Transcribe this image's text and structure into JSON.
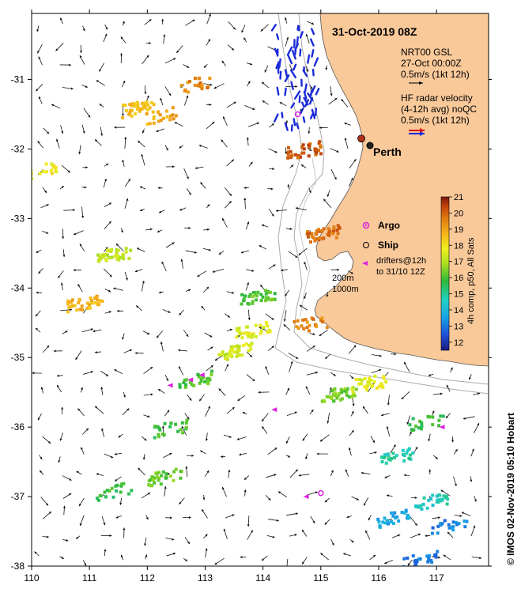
{
  "title": "31-Oct-2019 08Z",
  "legend": {
    "gsl_line1": "NRT00 GSL",
    "gsl_line2": "27-Oct 00:00Z",
    "gsl_scale": "0.5m/s (1kt 12h)",
    "hf_line1": "HF radar velocity",
    "hf_line2": "(4-12h avg) noQC",
    "hf_scale": "0.5m/s (1kt 12h)"
  },
  "places": {
    "perth": "Perth",
    "argo": "Argo",
    "ship": "Ship",
    "drifters_line1": "drifters@12h",
    "drifters_line2": "to 31/10 12Z",
    "iso200": "200m",
    "iso1000": "1000m"
  },
  "colorbar": {
    "label": "4h comp, p50, All Sats",
    "min": 11.5,
    "max": 21,
    "ticks": [
      "12",
      "13",
      "14",
      "15",
      "16",
      "17",
      "18",
      "19",
      "20",
      "21"
    ]
  },
  "credit": "© IMOS 02-Nov-2019 05:10 Hobart",
  "colors": {
    "land": "#f9c99a",
    "hf_blue": "#1a2bd8",
    "drifter": "#e020e0",
    "argo": "#e020e0"
  },
  "axes": {
    "lon_range": [
      110,
      117.9
    ],
    "lat_range": [
      -38,
      -30.05
    ],
    "x_ticks": [
      "110",
      "111",
      "112",
      "113",
      "114",
      "115",
      "116",
      "117"
    ],
    "y_ticks": [
      "-31",
      "-32",
      "-33",
      "-34",
      "-35",
      "-36",
      "-37",
      "-38"
    ]
  },
  "chart_data": {
    "type": "map",
    "sst_patches": [
      {
        "lon": 111.8,
        "lat": -31.4,
        "temp": 18.6
      },
      {
        "lon": 112.8,
        "lat": -31.05,
        "temp": 19.4
      },
      {
        "lon": 112.2,
        "lat": -31.5,
        "temp": 18.9
      },
      {
        "lon": 110.9,
        "lat": -34.2,
        "temp": 18.7
      },
      {
        "lon": 111.4,
        "lat": -33.5,
        "temp": 17.2
      },
      {
        "lon": 114.7,
        "lat": -32.0,
        "temp": 20.1
      },
      {
        "lon": 115.0,
        "lat": -33.2,
        "temp": 19.9
      },
      {
        "lon": 114.8,
        "lat": -34.5,
        "temp": 19.5
      },
      {
        "lon": 113.9,
        "lat": -34.1,
        "temp": 16.1
      },
      {
        "lon": 113.8,
        "lat": -34.6,
        "temp": 17.6
      },
      {
        "lon": 113.5,
        "lat": -34.9,
        "temp": 17.3
      },
      {
        "lon": 112.4,
        "lat": -36.0,
        "temp": 15.9
      },
      {
        "lon": 115.3,
        "lat": -35.5,
        "temp": 16.4
      },
      {
        "lon": 115.8,
        "lat": -35.35,
        "temp": 17.6
      },
      {
        "lon": 116.8,
        "lat": -35.9,
        "temp": 15.8
      },
      {
        "lon": 116.3,
        "lat": -36.4,
        "temp": 14.8
      },
      {
        "lon": 116.9,
        "lat": -37.05,
        "temp": 14.6
      },
      {
        "lon": 116.2,
        "lat": -37.3,
        "temp": 13.7
      },
      {
        "lon": 117.2,
        "lat": -37.4,
        "temp": 13.1
      },
      {
        "lon": 116.7,
        "lat": -37.9,
        "temp": 12.9
      },
      {
        "lon": 110.1,
        "lat": -32.3,
        "temp": 17.8
      },
      {
        "lon": 111.4,
        "lat": -36.9,
        "temp": 15.8
      },
      {
        "lon": 112.3,
        "lat": -36.7,
        "temp": 16.3
      },
      {
        "lon": 112.8,
        "lat": -35.3,
        "temp": 16.1
      }
    ],
    "hf_radar_region": {
      "lon": [
        114.2,
        115.0
      ],
      "lat": [
        -31.7,
        -30.2
      ]
    },
    "drifters": [
      {
        "lon": 112.4,
        "lat": -35.4
      },
      {
        "lon": 112.75,
        "lat": -35.32
      },
      {
        "lon": 112.95,
        "lat": -35.25
      },
      {
        "lon": 114.75,
        "lat": -37.0
      },
      {
        "lon": 117.1,
        "lat": -36.0
      },
      {
        "lon": 114.2,
        "lat": -35.75
      }
    ],
    "argo": [
      {
        "lon": 114.6,
        "lat": -31.5
      },
      {
        "lon": 115.0,
        "lat": -36.95
      }
    ],
    "ship": {
      "lon": 115.85,
      "lat": -31.95
    },
    "perth_marker": {
      "lon": 115.7,
      "lat": -31.85
    }
  }
}
